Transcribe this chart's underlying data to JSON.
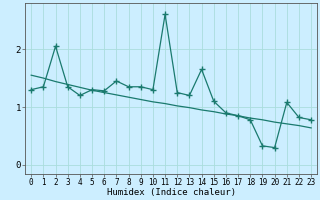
{
  "xlabel": "Humidex (Indice chaleur)",
  "background_color": "#cceeff",
  "line_color": "#1a7a6e",
  "x_values": [
    0,
    1,
    2,
    3,
    4,
    5,
    6,
    7,
    8,
    9,
    10,
    11,
    12,
    13,
    14,
    15,
    16,
    17,
    18,
    19,
    20,
    21,
    22,
    23
  ],
  "y_scatter": [
    1.3,
    1.35,
    2.05,
    1.35,
    1.2,
    1.3,
    1.28,
    1.45,
    1.35,
    1.35,
    1.3,
    2.6,
    1.25,
    1.2,
    1.65,
    1.1,
    0.9,
    0.85,
    0.78,
    0.33,
    0.3,
    1.08,
    0.82,
    0.78
  ],
  "y_trend": [
    1.55,
    1.5,
    1.44,
    1.39,
    1.34,
    1.29,
    1.25,
    1.21,
    1.17,
    1.13,
    1.09,
    1.06,
    1.02,
    0.99,
    0.95,
    0.92,
    0.88,
    0.85,
    0.81,
    0.78,
    0.74,
    0.71,
    0.68,
    0.64
  ],
  "ylim": [
    -0.15,
    2.8
  ],
  "xlim": [
    -0.5,
    23.5
  ],
  "yticks": [
    0,
    1,
    2
  ],
  "xticks": [
    0,
    1,
    2,
    3,
    4,
    5,
    6,
    7,
    8,
    9,
    10,
    11,
    12,
    13,
    14,
    15,
    16,
    17,
    18,
    19,
    20,
    21,
    22,
    23
  ],
  "grid_color": "#aadddd",
  "marker": "+",
  "markersize": 4,
  "markeredgewidth": 1.0,
  "linewidth": 0.9,
  "tick_fontsize": 5.5,
  "xlabel_fontsize": 6.5
}
